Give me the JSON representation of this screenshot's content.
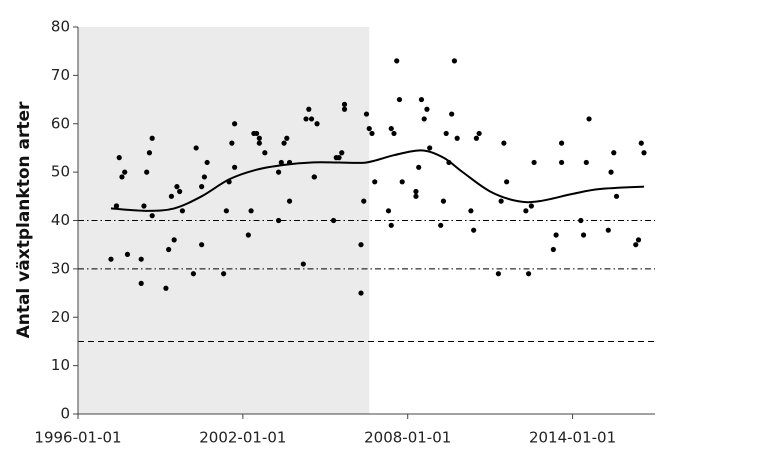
{
  "chart_data": {
    "type": "scatter",
    "y_label": "Antal växtplankton arter",
    "xlim": [
      1996,
      2017
    ],
    "ylim": [
      0,
      80
    ],
    "xticks": [
      {
        "value": 1996,
        "label": "1996-01-01"
      },
      {
        "value": 2002,
        "label": "2002-01-01"
      },
      {
        "value": 2008,
        "label": "2008-01-01"
      },
      {
        "value": 2014,
        "label": "2014-01-01"
      }
    ],
    "yticks": [
      0,
      10,
      20,
      30,
      40,
      50,
      60,
      70,
      80
    ],
    "shaded_region": [
      1996,
      2006.6
    ],
    "shade_color": "#ebebeb",
    "reference_lines": [
      {
        "value": 40,
        "style": "dashdot"
      },
      {
        "value": 30,
        "style": "dashdot"
      },
      {
        "value": 15,
        "style": "dashed"
      }
    ],
    "color": "#000000",
    "x": [
      1997.2,
      1997.4,
      1997.4,
      1997.5,
      1997.6,
      1997.7,
      1997.8,
      1998.3,
      1998.3,
      1998.4,
      1998.5,
      1998.6,
      1998.7,
      1998.7,
      1999.2,
      1999.3,
      1999.4,
      1999.5,
      1999.6,
      1999.7,
      1999.8,
      2000.2,
      2000.3,
      2000.5,
      2000.5,
      2000.6,
      2000.7,
      2001.3,
      2001.4,
      2001.5,
      2001.6,
      2001.7,
      2001.7,
      2002.2,
      2002.3,
      2002.4,
      2002.5,
      2002.6,
      2002.6,
      2002.8,
      2003.3,
      2003.3,
      2003.4,
      2003.5,
      2003.6,
      2003.7,
      2003.7,
      2004.2,
      2004.3,
      2004.4,
      2004.5,
      2004.6,
      2004.6,
      2004.7,
      2005.3,
      2005.4,
      2005.5,
      2005.6,
      2005.7,
      2005.7,
      2006.3,
      2006.3,
      2006.4,
      2006.5,
      2006.6,
      2006.7,
      2006.8,
      2007.3,
      2007.4,
      2007.4,
      2007.5,
      2007.6,
      2007.7,
      2007.8,
      2008.3,
      2008.3,
      2008.4,
      2008.5,
      2008.6,
      2008.7,
      2008.8,
      2009.2,
      2009.3,
      2009.4,
      2009.5,
      2009.6,
      2009.7,
      2009.8,
      2010.3,
      2010.4,
      2010.5,
      2010.6,
      2011.3,
      2011.4,
      2011.5,
      2011.6,
      2012.3,
      2012.4,
      2012.5,
      2012.6,
      2013.3,
      2013.4,
      2013.6,
      2013.6,
      2014.3,
      2014.4,
      2014.5,
      2014.6,
      2015.3,
      2015.4,
      2015.5,
      2015.6,
      2016.3,
      2016.4,
      2016.5,
      2016.6
    ],
    "values": [
      32,
      43,
      43,
      53,
      49,
      50,
      33,
      27,
      32,
      43,
      50,
      54,
      57,
      41,
      26,
      34,
      45,
      36,
      47,
      46,
      42,
      29,
      55,
      47,
      35,
      49,
      52,
      29,
      42,
      48,
      56,
      60,
      51,
      37,
      42,
      58,
      58,
      57,
      56,
      54,
      40,
      50,
      52,
      56,
      57,
      52,
      44,
      31,
      61,
      63,
      61,
      49,
      49,
      60,
      40,
      53,
      53,
      54,
      64,
      63,
      25,
      35,
      44,
      62,
      59,
      58,
      48,
      42,
      39,
      59,
      58,
      73,
      65,
      48,
      46,
      45,
      51,
      65,
      61,
      63,
      55,
      39,
      44,
      58,
      52,
      62,
      73,
      57,
      42,
      38,
      57,
      58,
      29,
      44,
      56,
      48,
      42,
      29,
      43,
      52,
      34,
      37,
      56,
      52,
      40,
      37,
      52,
      61,
      38,
      50,
      54,
      45,
      35,
      36,
      56,
      54
    ],
    "trend": {
      "color": "#000000",
      "x": [
        1997.2,
        1998.5,
        1999.5,
        2000.5,
        2001.5,
        2002.5,
        2003.5,
        2004.5,
        2005.5,
        2006.5,
        2007.5,
        2008.5,
        2009.3,
        2010.0,
        2011.0,
        2012.0,
        2012.8,
        2014.0,
        2015.0,
        2016.6
      ],
      "values": [
        42.5,
        42,
        42.5,
        45,
        48.5,
        50.5,
        51.5,
        52,
        52,
        52,
        53.5,
        54.5,
        53,
        50,
        46,
        44,
        44,
        45.5,
        46.5,
        47
      ]
    }
  }
}
